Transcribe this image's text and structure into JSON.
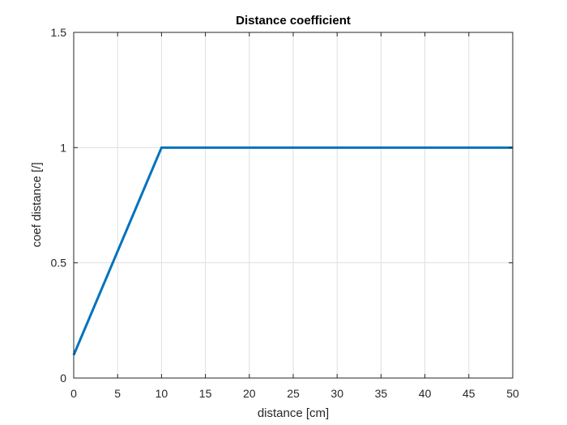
{
  "chart_data": {
    "type": "line",
    "title": "Distance coefficient",
    "xlabel": "distance [cm]",
    "ylabel": "coef distance [/]",
    "xlim": [
      0,
      50
    ],
    "ylim": [
      0,
      1.5
    ],
    "xticks": [
      "0",
      "5",
      "10",
      "15",
      "20",
      "25",
      "30",
      "35",
      "40",
      "45",
      "50"
    ],
    "yticks": [
      "0",
      "0.5",
      "1",
      "1.5"
    ],
    "grid": true,
    "series": [
      {
        "color": "#0072bd",
        "points": [
          [
            0,
            0.1
          ],
          [
            10,
            1.0
          ],
          [
            50,
            1.0
          ]
        ]
      }
    ]
  }
}
